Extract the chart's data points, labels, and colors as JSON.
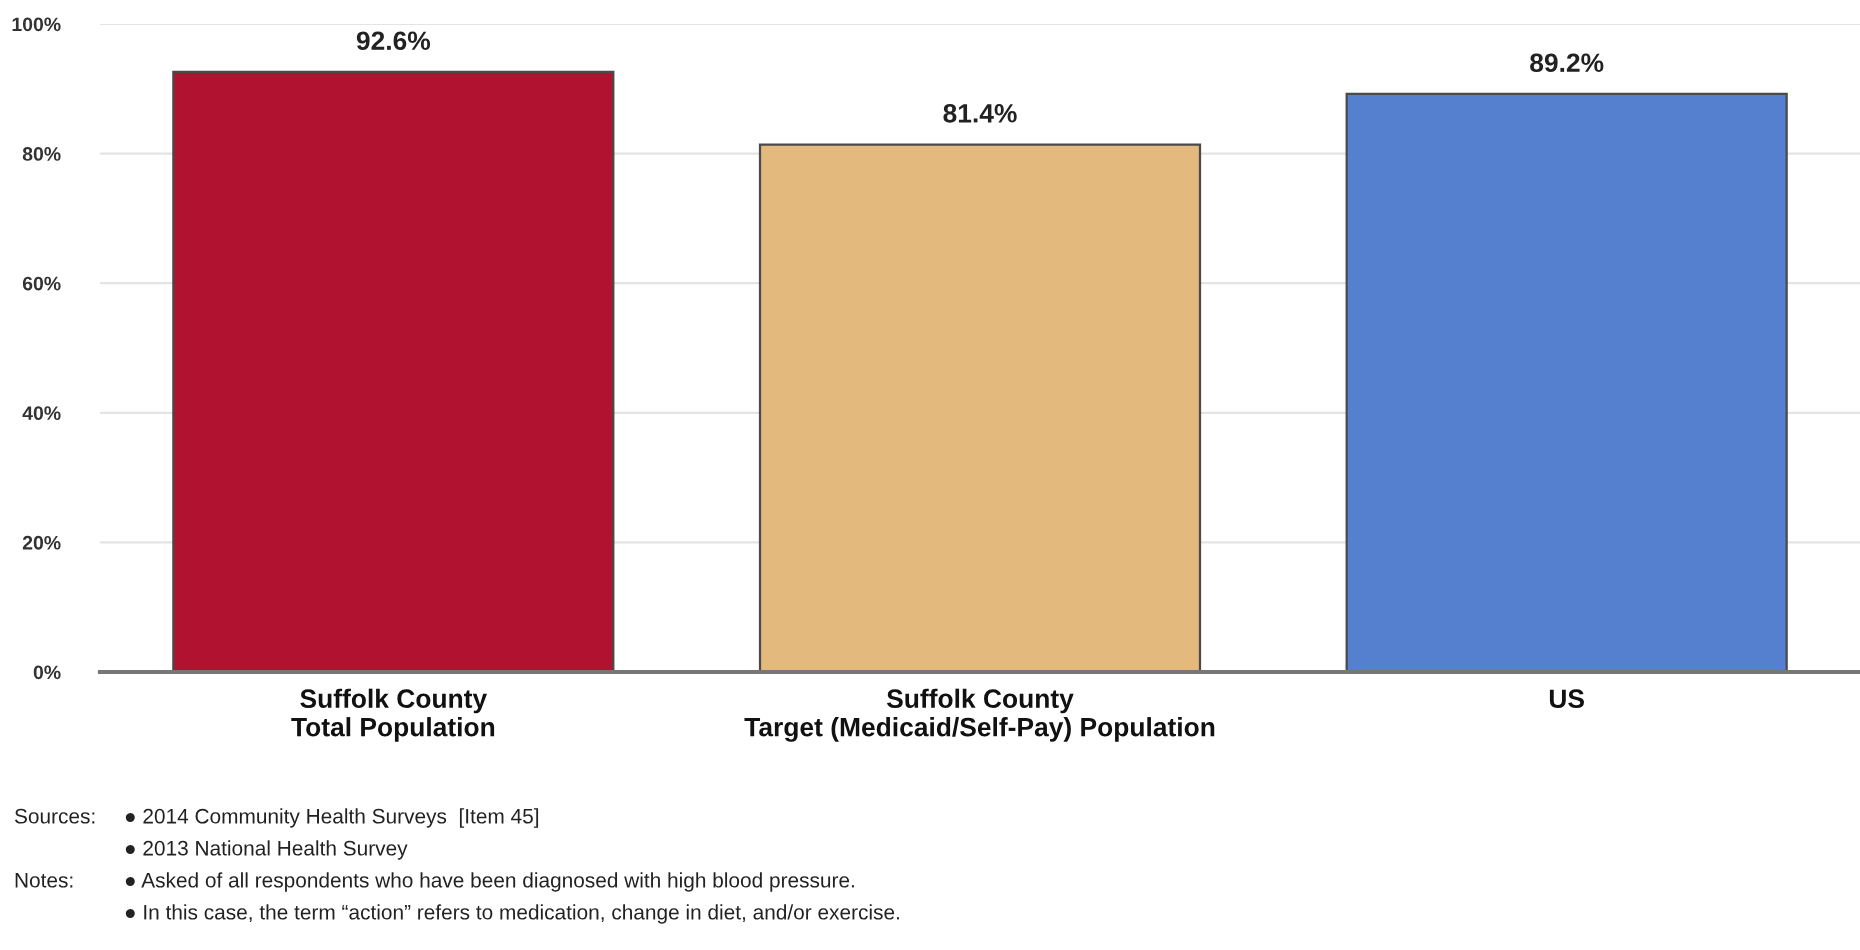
{
  "chart_data": {
    "type": "bar",
    "categories": [
      "Suffolk County\nTotal Population",
      "Suffolk County\nTarget (Medicaid/Self-Pay) Population",
      "US"
    ],
    "values": [
      92.6,
      81.4,
      89.2
    ],
    "colors": [
      "#b01230",
      "#e3b97e",
      "#5580d0"
    ],
    "value_labels": [
      "92.6%",
      "81.4%",
      "89.2%"
    ],
    "ylim": [
      0,
      100
    ],
    "yticks": [
      {
        "value": 0,
        "label": "0%"
      },
      {
        "value": 20,
        "label": "20%"
      },
      {
        "value": 40,
        "label": "40%"
      },
      {
        "value": 60,
        "label": "60%"
      },
      {
        "value": 80,
        "label": "80%"
      },
      {
        "value": 100,
        "label": "100%"
      }
    ],
    "grid": "y",
    "annotations": [
      "Sources:",
      "● 2014 Community Health Surveys  [Item 45]",
      "● 2013 National Health Survey",
      "Notes:",
      "● Asked of all respondents who have been diagnosed with high blood pressure.",
      "● In this case, the term “action” refers to medication, change in diet, and/or exercise."
    ]
  }
}
